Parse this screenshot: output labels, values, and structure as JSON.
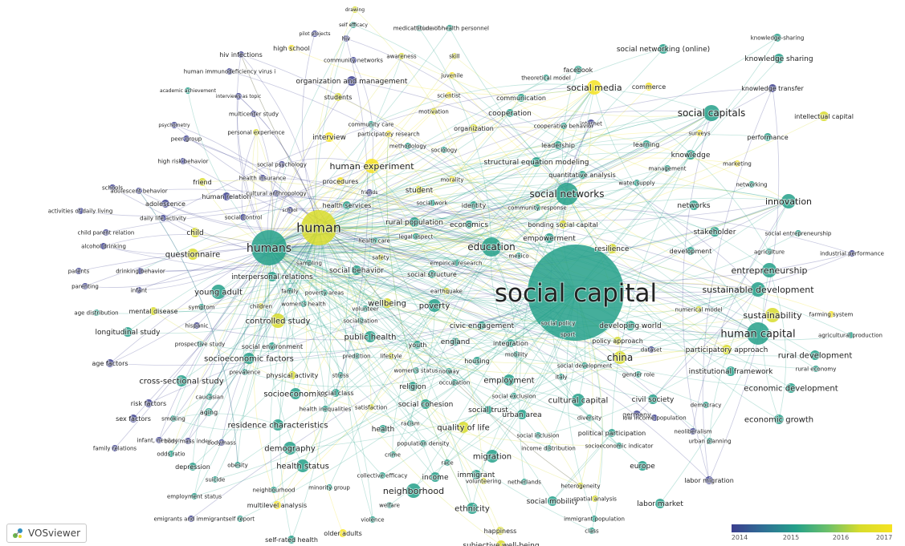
{
  "logo": {
    "text": "VOSviewer",
    "icon": "vosviewer-logo-icon"
  },
  "legend": {
    "ticks": [
      "2014",
      "2015",
      "2016",
      "2017"
    ],
    "colors": [
      "#3b3e8e",
      "#24a08a",
      "#d8dc2c",
      "#f6e321"
    ]
  },
  "nodes": [
    {
      "label": "social capital",
      "c": 1
    },
    {
      "label": "humans",
      "c": 1
    },
    {
      "label": "human",
      "c": 2
    },
    {
      "label": "social networks",
      "c": 1
    },
    {
      "label": "education",
      "c": 1
    },
    {
      "label": "social capitals",
      "c": 1
    },
    {
      "label": "innovation",
      "c": 1
    },
    {
      "label": "sustainable development",
      "c": 1
    },
    {
      "label": "human capital",
      "c": 1
    },
    {
      "label": "sustainability",
      "c": 2
    },
    {
      "label": "entrepreneurship",
      "c": 1
    },
    {
      "label": "china",
      "c": 2
    },
    {
      "label": "social media",
      "c": 3
    },
    {
      "label": "human experiment",
      "c": 3
    },
    {
      "label": "controlled study",
      "c": 2
    },
    {
      "label": "young adult",
      "c": 1
    },
    {
      "label": "questionnaire",
      "c": 2
    },
    {
      "label": "demography",
      "c": 1
    },
    {
      "label": "health status",
      "c": 1
    },
    {
      "label": "neighborhood",
      "c": 1
    },
    {
      "label": "ethnicity",
      "c": 1
    },
    {
      "label": "migration",
      "c": 1
    },
    {
      "label": "quality of life",
      "c": 2
    },
    {
      "label": "employment",
      "c": 1
    },
    {
      "label": "cultural capital",
      "c": 1
    },
    {
      "label": "poverty",
      "c": 1
    },
    {
      "label": "wellbeing",
      "c": 2
    },
    {
      "label": "public health",
      "c": 1
    },
    {
      "label": "socioeconomics",
      "c": 1
    },
    {
      "label": "socioeconomic factors",
      "c": 1
    },
    {
      "label": "residence characteristics",
      "c": 1
    },
    {
      "label": "cross-sectional study",
      "c": 1
    },
    {
      "label": "longitudinal study",
      "c": 1
    },
    {
      "label": "interpersonal relations",
      "c": 1
    },
    {
      "label": "social behavior",
      "c": 1
    },
    {
      "label": "rural population",
      "c": 1
    },
    {
      "label": "economics",
      "c": 1
    },
    {
      "label": "empowerment",
      "c": 1
    },
    {
      "label": "resilience",
      "c": 2
    },
    {
      "label": "development",
      "c": 1
    },
    {
      "label": "stakeholder",
      "c": 1
    },
    {
      "label": "networks",
      "c": 1
    },
    {
      "label": "knowledge",
      "c": 1
    },
    {
      "label": "knowledge sharing",
      "c": 1
    },
    {
      "label": "knowledge-sharing",
      "c": 1
    },
    {
      "label": "knowledge transfer",
      "c": 0
    },
    {
      "label": "intellectual capital",
      "c": 2
    },
    {
      "label": "performance",
      "c": 1
    },
    {
      "label": "learning",
      "c": 1
    },
    {
      "label": "leadership",
      "c": 1
    },
    {
      "label": "internet",
      "c": 0
    },
    {
      "label": "facebook",
      "c": 1
    },
    {
      "label": "social networking (online)",
      "c": 1
    },
    {
      "label": "commerce",
      "c": 3
    },
    {
      "label": "cooperation",
      "c": 1
    },
    {
      "label": "communication",
      "c": 1
    },
    {
      "label": "organization",
      "c": 2
    },
    {
      "label": "organization and management",
      "c": 0
    },
    {
      "label": "community networks",
      "c": 0
    },
    {
      "label": "high school",
      "c": 3
    },
    {
      "label": "hiv infections",
      "c": 0
    },
    {
      "label": "human immunodeficiency virus i",
      "c": 0
    },
    {
      "label": "interview",
      "c": 3
    },
    {
      "label": "students",
      "c": 2
    },
    {
      "label": "student",
      "c": 2
    },
    {
      "label": "structural equation modeling",
      "c": 1
    },
    {
      "label": "quantitative analysis",
      "c": 1
    },
    {
      "label": "developing world",
      "c": 1
    },
    {
      "label": "rural development",
      "c": 1
    },
    {
      "label": "economic development",
      "c": 1
    },
    {
      "label": "economic growth",
      "c": 1
    },
    {
      "label": "institutional framework",
      "c": 1
    },
    {
      "label": "participatory approach",
      "c": 2
    },
    {
      "label": "europe",
      "c": 1
    },
    {
      "label": "labor market",
      "c": 1
    },
    {
      "label": "labor migration",
      "c": 0
    },
    {
      "label": "civil society",
      "c": 1
    },
    {
      "label": "germany",
      "c": 0
    },
    {
      "label": "social trust",
      "c": 1
    },
    {
      "label": "social cohesion",
      "c": 1
    },
    {
      "label": "urban area",
      "c": 1
    },
    {
      "label": "religion",
      "c": 1
    },
    {
      "label": "health",
      "c": 1
    },
    {
      "label": "immigrant",
      "c": 1
    },
    {
      "label": "income",
      "c": 1
    },
    {
      "label": "social mobility",
      "c": 1
    },
    {
      "label": "happiness",
      "c": 2
    },
    {
      "label": "subjective well-being",
      "c": 2
    },
    {
      "label": "self-rated health",
      "c": 1
    },
    {
      "label": "older adults",
      "c": 3
    },
    {
      "label": "multilevel analysis",
      "c": 3
    },
    {
      "label": "child",
      "c": 2
    },
    {
      "label": "adolescence",
      "c": 0
    },
    {
      "label": "friend",
      "c": 2
    },
    {
      "label": "human relation",
      "c": 0
    },
    {
      "label": "mental disease",
      "c": 2
    },
    {
      "label": "age factors",
      "c": 0
    },
    {
      "label": "risk factors",
      "c": 0
    },
    {
      "label": "sex factors",
      "c": 0
    },
    {
      "label": "depression",
      "c": 1
    },
    {
      "label": "obesity",
      "c": 1
    },
    {
      "label": "england",
      "c": 1
    },
    {
      "label": "integration",
      "c": 1
    },
    {
      "label": "civic engagement",
      "c": 1
    },
    {
      "label": "social policy",
      "c": 1
    },
    {
      "label": "sport",
      "c": 1
    },
    {
      "label": "youth",
      "c": 1
    },
    {
      "label": "housing",
      "c": 1
    },
    {
      "label": "policy approach",
      "c": 2
    },
    {
      "label": "mexico",
      "c": 1
    },
    {
      "label": "bonding social capital",
      "c": 2
    },
    {
      "label": "identity",
      "c": 1
    },
    {
      "label": "social structure",
      "c": 1
    },
    {
      "label": "social exclusion",
      "c": 1
    },
    {
      "label": "social inclusion",
      "c": 1
    },
    {
      "label": "political participation",
      "c": 1
    },
    {
      "label": "neoliberalism",
      "c": 0
    },
    {
      "label": "urban planning",
      "c": 1
    },
    {
      "label": "democracy",
      "c": 1
    },
    {
      "label": "agriculture",
      "c": 1
    },
    {
      "label": "industrial performance",
      "c": 0
    },
    {
      "label": "social entrepreneurship",
      "c": 1
    },
    {
      "label": "farming system",
      "c": 3
    },
    {
      "label": "agricultural production",
      "c": 1
    },
    {
      "label": "rural economy",
      "c": 1
    },
    {
      "label": "management",
      "c": 1
    },
    {
      "label": "marketing",
      "c": 3
    },
    {
      "label": "networking",
      "c": 1
    },
    {
      "label": "surveys",
      "c": 3
    },
    {
      "label": "water supply",
      "c": 1
    },
    {
      "label": "health care",
      "c": 1
    },
    {
      "label": "health services",
      "c": 1
    },
    {
      "label": "procedures",
      "c": 3
    },
    {
      "label": "health insurance",
      "c": 0
    },
    {
      "label": "cultural anthropology",
      "c": 0
    },
    {
      "label": "social control",
      "c": 0
    },
    {
      "label": "peer group",
      "c": 0
    },
    {
      "label": "high risk behavior",
      "c": 0
    },
    {
      "label": "social psychology",
      "c": 0
    },
    {
      "label": "community care",
      "c": 1
    },
    {
      "label": "participatory research",
      "c": 3
    },
    {
      "label": "methodology",
      "c": 1
    },
    {
      "label": "sociology",
      "c": 1
    },
    {
      "label": "motivation",
      "c": 2
    },
    {
      "label": "scientist",
      "c": 3
    },
    {
      "label": "morality",
      "c": 3
    },
    {
      "label": "social work",
      "c": 1
    },
    {
      "label": "community response",
      "c": 1
    },
    {
      "label": "empirical research",
      "c": 1
    },
    {
      "label": "earthquake",
      "c": 2
    },
    {
      "label": "safety",
      "c": 2
    },
    {
      "label": "legal aspect",
      "c": 1
    },
    {
      "label": "socialization",
      "c": 1
    },
    {
      "label": "prediction",
      "c": 1
    },
    {
      "label": "lifestyle",
      "c": 2
    },
    {
      "label": "volunteer",
      "c": 1
    },
    {
      "label": "women's health",
      "c": 1
    },
    {
      "label": "poverty areas",
      "c": 1
    },
    {
      "label": "family",
      "c": 1
    },
    {
      "label": "children",
      "c": 2
    },
    {
      "label": "sampling",
      "c": 1
    },
    {
      "label": "symptom",
      "c": 1
    },
    {
      "label": "hispanic",
      "c": 0
    },
    {
      "label": "prospective study",
      "c": 1
    },
    {
      "label": "social environment",
      "c": 1
    },
    {
      "label": "prevalence",
      "c": 1
    },
    {
      "label": "physical activity",
      "c": 2
    },
    {
      "label": "stress",
      "c": 1
    },
    {
      "label": "caucasian",
      "c": 1
    },
    {
      "label": "aging",
      "c": 1
    },
    {
      "label": "social class",
      "c": 1
    },
    {
      "label": "health inequalities",
      "c": 1
    },
    {
      "label": "satisfaction",
      "c": 2
    },
    {
      "label": "racism",
      "c": 1
    },
    {
      "label": "population density",
      "c": 1
    },
    {
      "label": "crime",
      "c": 1
    },
    {
      "label": "race",
      "c": 1
    },
    {
      "label": "collective efficacy",
      "c": 1
    },
    {
      "label": "volunteering",
      "c": 2
    },
    {
      "label": "netherlands",
      "c": 1
    },
    {
      "label": "heterogeneity",
      "c": 2
    },
    {
      "label": "spatial analysis",
      "c": 2
    },
    {
      "label": "immigrant population",
      "c": 1
    },
    {
      "label": "class",
      "c": 1
    },
    {
      "label": "income distribution",
      "c": 1
    },
    {
      "label": "socioeconomic indicator",
      "c": 1
    },
    {
      "label": "diversity",
      "c": 1
    },
    {
      "label": "low income population",
      "c": 0
    },
    {
      "label": "gender role",
      "c": 1
    },
    {
      "label": "dataset",
      "c": 0
    },
    {
      "label": "numerical model",
      "c": 2
    },
    {
      "label": "italy",
      "c": 1
    },
    {
      "label": "social development",
      "c": 1
    },
    {
      "label": "mobility",
      "c": 1
    },
    {
      "label": "women's status",
      "c": 1
    },
    {
      "label": "norway",
      "c": 1
    },
    {
      "label": "occupation",
      "c": 1
    },
    {
      "label": "welfare",
      "c": 1
    },
    {
      "label": "violence",
      "c": 1
    },
    {
      "label": "minority group",
      "c": 1
    },
    {
      "label": "neighbourhood",
      "c": 1
    },
    {
      "label": "suicide",
      "c": 1
    },
    {
      "label": "self report",
      "c": 1
    },
    {
      "label": "emigrants and immigrants",
      "c": 0
    },
    {
      "label": "employment status",
      "c": 1
    },
    {
      "label": "odds ratio",
      "c": 1
    },
    {
      "label": "family relations",
      "c": 0
    },
    {
      "label": "infant, newborn",
      "c": 0
    },
    {
      "label": "body mass index",
      "c": 0
    },
    {
      "label": "bodymass",
      "c": 0
    },
    {
      "label": "smoking",
      "c": 1
    },
    {
      "label": "age distribution",
      "c": 1
    },
    {
      "label": "infant",
      "c": 0
    },
    {
      "label": "parenting",
      "c": 0
    },
    {
      "label": "parents",
      "c": 0
    },
    {
      "label": "drinking behavior",
      "c": 0
    },
    {
      "label": "alcohol drinking",
      "c": 0
    },
    {
      "label": "child parent relation",
      "c": 0
    },
    {
      "label": "activities of daily living",
      "c": 0
    },
    {
      "label": "daily life activity",
      "c": 0
    },
    {
      "label": "adolescent behavior",
      "c": 0
    },
    {
      "label": "schools",
      "c": 0
    },
    {
      "label": "school",
      "c": 0
    },
    {
      "label": "friends",
      "c": 0
    },
    {
      "label": "psychometry",
      "c": 0
    },
    {
      "label": "personal experience",
      "c": 2
    },
    {
      "label": "multicenter study",
      "c": 0
    },
    {
      "label": "academic achievement",
      "c": 1
    },
    {
      "label": "interviews as topic",
      "c": 0
    },
    {
      "label": "pilot projects",
      "c": 0
    },
    {
      "label": "hiv",
      "c": 0
    },
    {
      "label": "self efficacy",
      "c": 1
    },
    {
      "label": "drawing",
      "c": 2
    },
    {
      "label": "medical education",
      "c": 1
    },
    {
      "label": "attitude of health personnel",
      "c": 1
    },
    {
      "label": "awareness",
      "c": 2
    },
    {
      "label": "skill",
      "c": 2
    },
    {
      "label": "juvenile",
      "c": 3
    },
    {
      "label": "theoretical model",
      "c": 1
    },
    {
      "label": "cooperative behavior",
      "c": 1
    },
    {
      "label": "teaching",
      "c": 2
    },
    {
      "label": "bonding",
      "c": 1
    }
  ]
}
